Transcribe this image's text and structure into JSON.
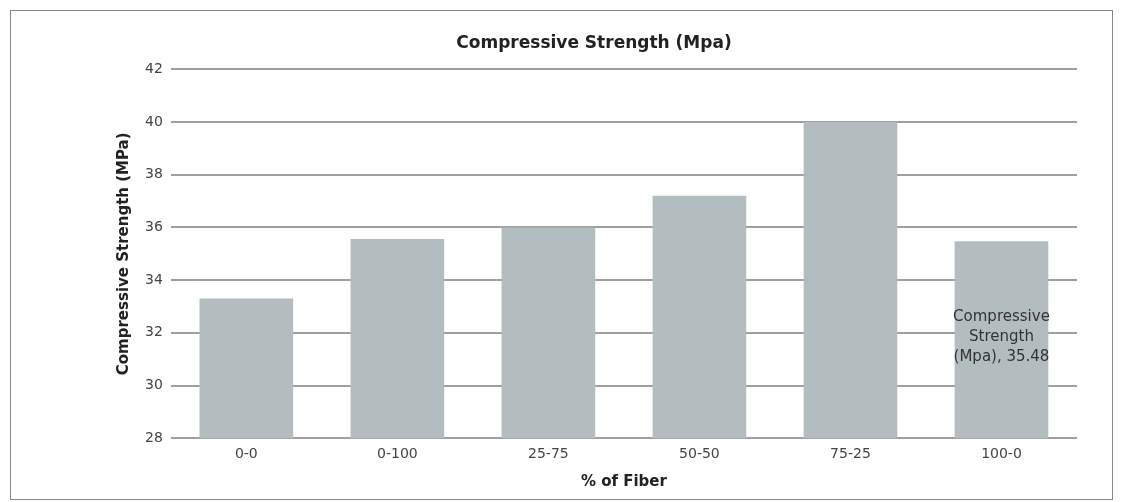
{
  "chart_data": {
    "type": "bar",
    "title": "Compressive Strength (Mpa)",
    "xlabel": "% of Fiber",
    "ylabel": "Compressive Strength (MPa)",
    "categories": [
      "0-0",
      "0-100",
      "25-75",
      "50-50",
      "75-25",
      "100-0"
    ],
    "values": [
      33.3,
      35.56,
      36.0,
      37.2,
      40.0,
      35.48
    ],
    "value_labels": [
      null,
      null,
      null,
      null,
      null,
      "Compressive Strength (Mpa), 35.48"
    ],
    "color": "#b3bcbe",
    "ylim": [
      28,
      42
    ],
    "yticks": [
      28,
      30,
      32,
      34,
      36,
      38,
      40,
      42
    ],
    "grid": "y",
    "legend": false
  }
}
